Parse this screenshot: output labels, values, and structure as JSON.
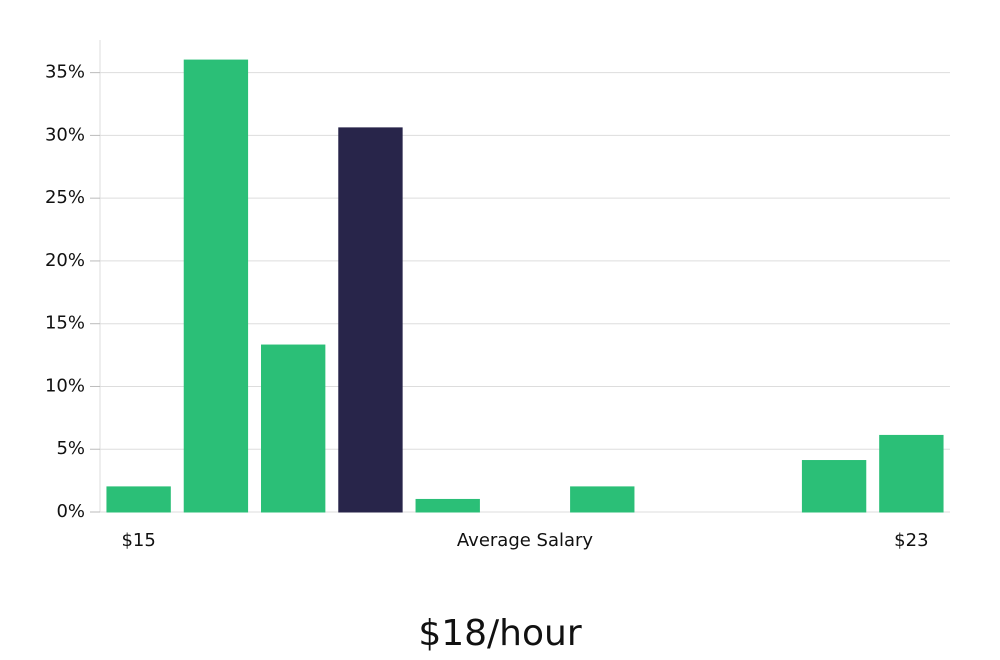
{
  "chart_data": {
    "type": "bar",
    "subtitle": "$18/hour",
    "x_label": "Average Salary",
    "categories": [
      "$15",
      null,
      null,
      null,
      null,
      null,
      null,
      null,
      null,
      null,
      "$23"
    ],
    "values": [
      2,
      36,
      13.3,
      30.6,
      1,
      0,
      2,
      0,
      0,
      4.1,
      6.1
    ],
    "colors": [
      "#2bbf77",
      "#2bbf77",
      "#2bbf77",
      "#28254a",
      "#2bbf77",
      "#2bbf77",
      "#2bbf77",
      "#2bbf77",
      "#2bbf77",
      "#2bbf77",
      "#2bbf77"
    ],
    "ylim": [
      0,
      37.6
    ],
    "yticks": [
      {
        "value": 0,
        "label": "0%"
      },
      {
        "value": 5,
        "label": "5%"
      },
      {
        "value": 10,
        "label": "10%"
      },
      {
        "value": 15,
        "label": "15%"
      },
      {
        "value": 20,
        "label": "20%"
      },
      {
        "value": 25,
        "label": "25%"
      },
      {
        "value": 30,
        "label": "30%"
      },
      {
        "value": 35,
        "label": "35%"
      }
    ],
    "grid": true
  }
}
